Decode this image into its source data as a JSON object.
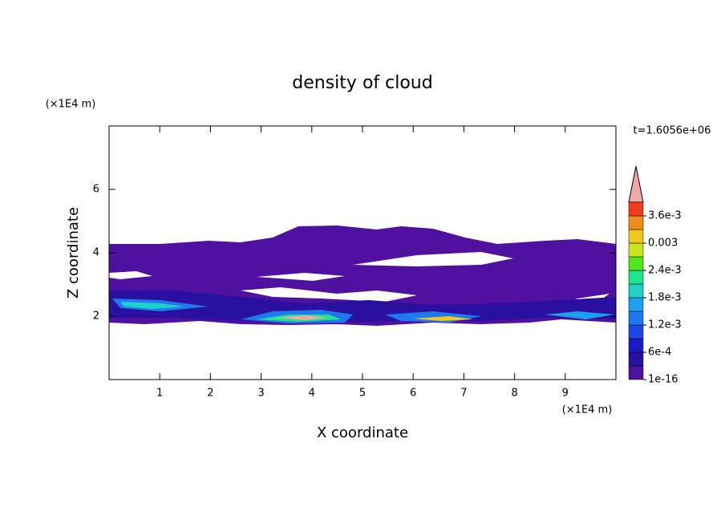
{
  "chart_data": {
    "type": "contour",
    "title": "density of cloud",
    "x_label": "X coordinate",
    "y_label": "Z coordinate",
    "x_unit": "(×1E4 m)",
    "y_unit": "(×1E4 m)",
    "annotation": "t=1.6056e+06",
    "xlim": [
      0,
      10
    ],
    "xticks": [
      1,
      2,
      3,
      4,
      5,
      6,
      7,
      8,
      9
    ],
    "ylim": [
      0,
      8
    ],
    "yticks": [
      2,
      4,
      6
    ],
    "colorbar_lim": [
      1e-16,
      0.0039
    ],
    "colorbar_ticks": [
      1e-16,
      {
        "value": 0.0006,
        "label": "6e-4"
      },
      {
        "value": 0.0012,
        "label": "1.2e-3"
      },
      {
        "value": 0.0018,
        "label": "1.8e-3"
      },
      {
        "value": 0.0024,
        "label": "2.4e-3"
      },
      0.003,
      {
        "value": 0.0036,
        "label": "3.6e-3"
      }
    ],
    "colorbar_colors": [
      "#5010a0",
      "#2a10a0",
      "#1a1ac8",
      "#1e46e6",
      "#1e78f0",
      "#1ea0f0",
      "#1ed2c8",
      "#1ee68c",
      "#50e61e",
      "#c8e61e",
      "#f0c81e",
      "#f08c1e",
      "#f03c1e"
    ],
    "extend_color": "#f0a8a8"
  }
}
